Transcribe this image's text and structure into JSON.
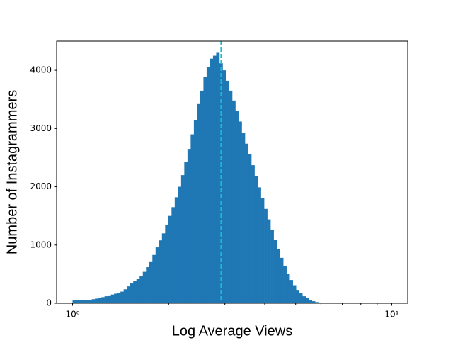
{
  "chart_data": {
    "type": "histogram",
    "x_label": "Log Average Views",
    "y_label": "Number of Instagrammers",
    "color": "#1f77b4",
    "xscale": "log",
    "bins": [
      1,
      1.0233,
      1.0471,
      1.0715,
      1.0965,
      1.122,
      1.1482,
      1.1749,
      1.2023,
      1.2303,
      1.2589,
      1.2882,
      1.3183,
      1.349,
      1.3804,
      1.4125,
      1.4454,
      1.4791,
      1.5136,
      1.5488,
      1.5849,
      1.6218,
      1.6596,
      1.6982,
      1.7378,
      1.7783,
      1.8197,
      1.8621,
      1.9055,
      1.9498,
      1.9953,
      2.0417,
      2.0893,
      2.138,
      2.1878,
      2.2387,
      2.2909,
      2.3442,
      2.3988,
      2.4547,
      2.5119,
      2.5704,
      2.6303,
      2.6915,
      2.7542,
      2.8184,
      2.884,
      2.9512,
      3.02,
      3.0903,
      3.1623,
      3.2359,
      3.3113,
      3.3884,
      3.4674,
      3.5481,
      3.6308,
      3.7154,
      3.8019,
      3.8905,
      3.9811,
      4.0738,
      4.1687,
      4.2658,
      4.3652,
      4.4668,
      4.5709,
      4.6774,
      4.7863,
      4.8978,
      5.0119,
      5.1286,
      5.2481,
      5.3703,
      5.4954,
      5.6234,
      5.7544,
      5.8884,
      6.0256,
      6.166,
      6.3096,
      6.4565,
      6.6069,
      6.7608,
      6.9183,
      7.0795,
      7.2444,
      7.4131,
      7.5858,
      7.7625,
      7.9433,
      8.1283,
      8.3176,
      8.5114,
      8.7096,
      8.9125,
      9.1201,
      9.3325,
      9.5499,
      9.7724,
      10
    ],
    "values": [
      50,
      50,
      50,
      50,
      55,
      60,
      70,
      80,
      90,
      105,
      120,
      135,
      150,
      165,
      180,
      200,
      240,
      290,
      340,
      380,
      420,
      470,
      540,
      620,
      720,
      830,
      960,
      1080,
      1200,
      1350,
      1500,
      1650,
      1820,
      2000,
      2200,
      2420,
      2650,
      2900,
      3150,
      3420,
      3650,
      3880,
      4050,
      4200,
      4250,
      4300,
      4120,
      4000,
      3820,
      3650,
      3480,
      3300,
      3120,
      2930,
      2740,
      2560,
      2370,
      2180,
      1990,
      1800,
      1620,
      1440,
      1260,
      1090,
      930,
      780,
      640,
      510,
      400,
      310,
      230,
      170,
      120,
      85,
      55,
      35,
      20,
      12,
      7,
      4,
      2,
      1,
      1,
      0,
      0,
      0,
      0,
      0,
      0,
      0,
      0,
      0,
      0,
      0,
      0,
      0,
      0,
      0,
      0,
      0
    ],
    "vline": {
      "value": 2.92,
      "color": "#17becf"
    },
    "xlim": [
      0.8913,
      11.2202
    ],
    "xticks": [
      {
        "value": 1,
        "label": "10⁰"
      },
      {
        "value": 10,
        "label": "10¹"
      }
    ],
    "xminorticks": [
      2,
      3,
      4,
      5,
      6,
      7,
      8,
      9
    ],
    "ylim": [
      0,
      4500
    ],
    "yticks": [
      0,
      1000,
      2000,
      3000,
      4000
    ]
  }
}
